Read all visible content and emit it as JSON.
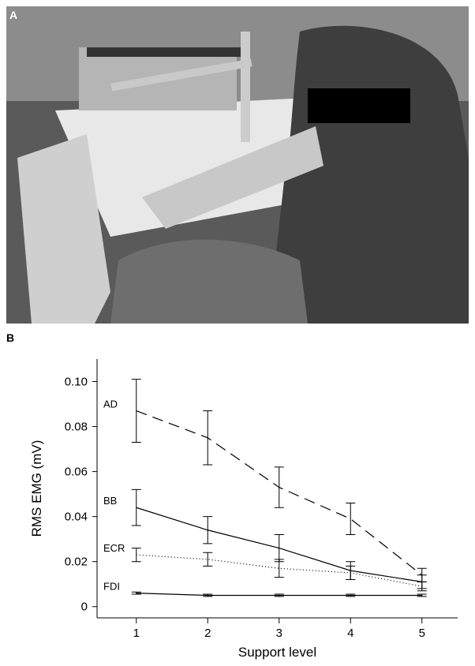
{
  "panel_labels": [
    "A",
    "B"
  ],
  "chart_data": {
    "type": "line",
    "x_label": "Support level",
    "y_label": "RMS EMG (mV)",
    "x": [
      1,
      2,
      3,
      4,
      5
    ],
    "xlim": [
      0.45,
      5.5
    ],
    "xticks": [
      1,
      2,
      3,
      4,
      5
    ],
    "ylim": [
      -0.005,
      0.11
    ],
    "yticks": [
      0,
      0.02,
      0.04,
      0.06,
      0.08,
      {
        "value": 0.1,
        "label": "0.10"
      }
    ],
    "series": [
      {
        "name": "AD",
        "color": "#000000",
        "line_style": "dashed",
        "values": [
          0.087,
          0.075,
          0.053,
          0.039,
          0.014
        ],
        "errors": [
          0.014,
          0.012,
          0.009,
          0.007,
          0.003
        ]
      },
      {
        "name": "BB",
        "color": "#000000",
        "line_style": "solid",
        "values": [
          0.044,
          0.034,
          0.026,
          0.016,
          0.011
        ],
        "errors": [
          0.008,
          0.006,
          0.006,
          0.004,
          0.003
        ]
      },
      {
        "name": "ECR",
        "color": "#000000",
        "line_style": "dotted",
        "values": [
          0.023,
          0.021,
          0.017,
          0.015,
          0.009
        ],
        "errors": [
          0.003,
          0.003,
          0.004,
          0.003,
          0.002
        ]
      },
      {
        "name": "FDI",
        "color": "#000000",
        "line_style": "solid",
        "values": [
          0.006,
          0.005,
          0.005,
          0.005,
          0.005
        ],
        "errors": [
          0.0005,
          0.0005,
          0.0005,
          0.0005,
          0.0005
        ]
      }
    ]
  }
}
